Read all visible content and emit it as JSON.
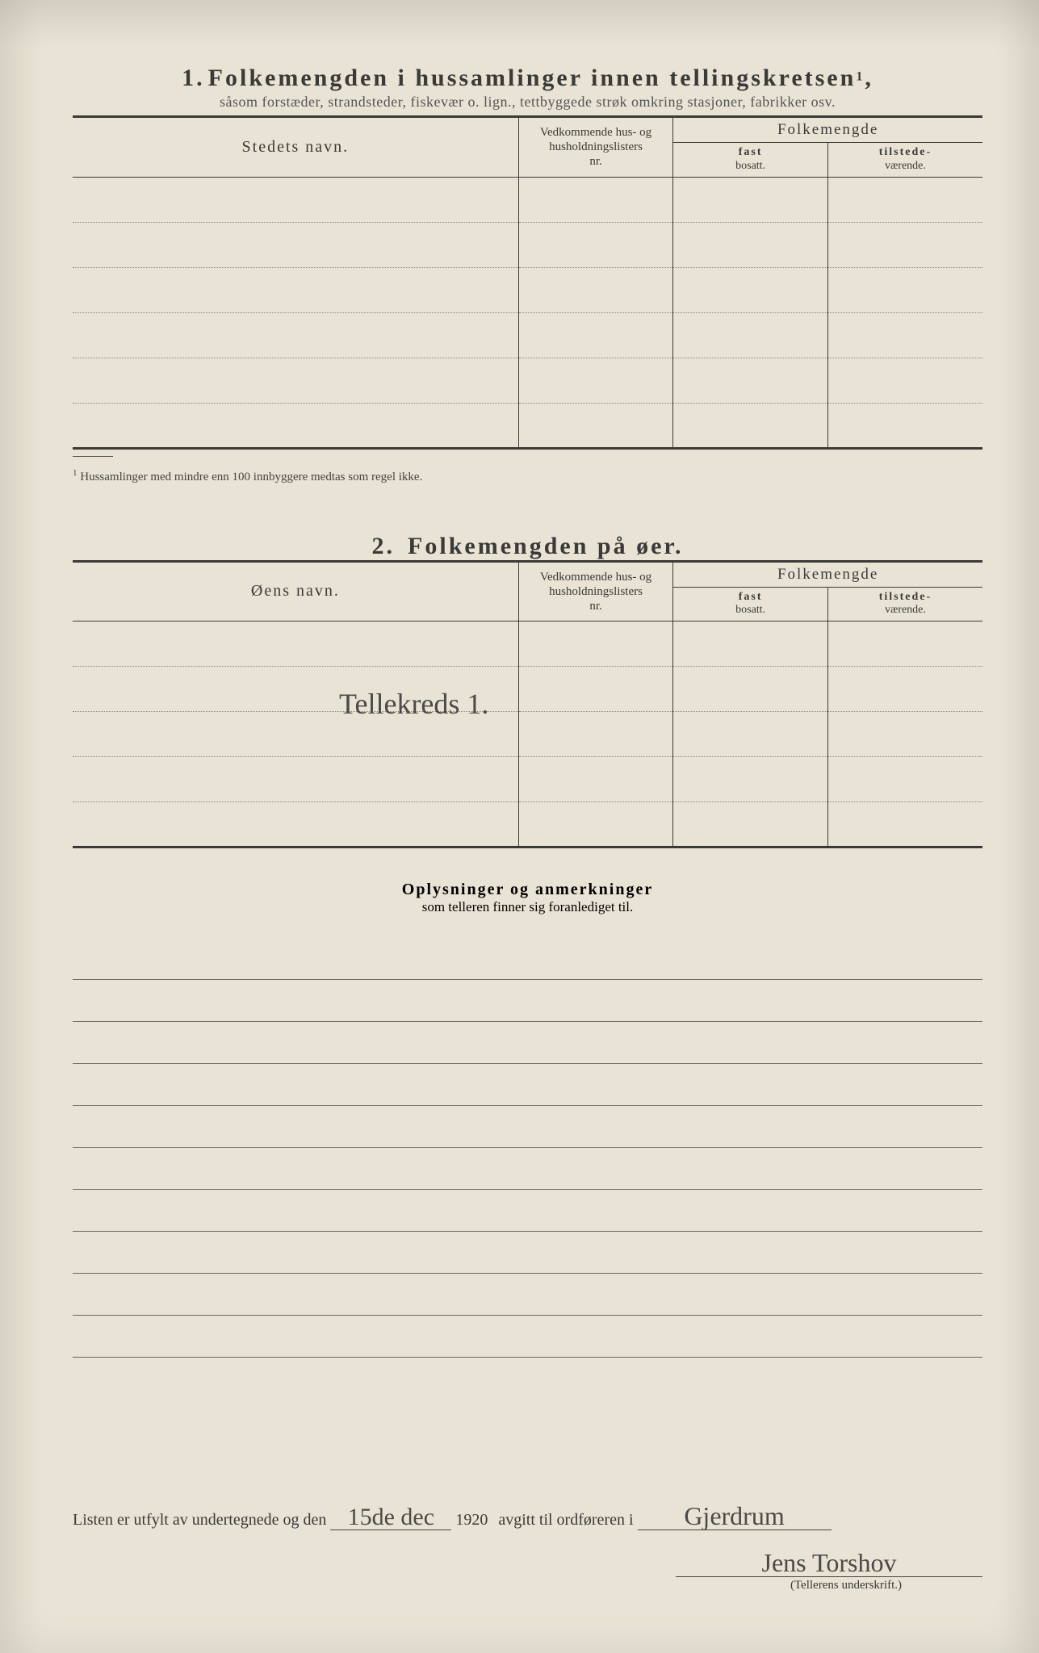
{
  "colors": {
    "paper": "#e8e3d4",
    "ink": "#3a3a38",
    "faint": "#555"
  },
  "section1": {
    "number": "1.",
    "title": "Folkemengden i hussamlinger innen tellingskretsen",
    "title_sup": "1",
    "subtitle": "såsom forstæder, strandsteder, fiskevær o. lign., tettbyggede strøk omkring stasjoner, fabrikker osv.",
    "col_name": "Stedets navn.",
    "col_nr_l1": "Vedkommende hus- og",
    "col_nr_l2": "husholdningslisters",
    "col_nr_l3": "nr.",
    "col_folk": "Folkemengde",
    "col_f1_top": "fast",
    "col_f1_bot": "bosatt.",
    "col_f2_top": "tilstede-",
    "col_f2_bot": "værende.",
    "footnote_sup": "1",
    "footnote": "Hussamlinger med mindre enn 100 innbyggere medtas som regel ikke.",
    "row_count": 6
  },
  "section2": {
    "number": "2.",
    "title": "Folkemengden på øer.",
    "col_name": "Øens navn.",
    "row_count": 5,
    "handwritten": "Tellekreds 1."
  },
  "remarks": {
    "title": "Oplysninger og anmerkninger",
    "subtitle": "som telleren finner sig foranlediget til.",
    "line_count": 10
  },
  "footer": {
    "prefix": "Listen er utfylt av undertegnede og den",
    "date_handwritten": "15de dec",
    "year": "1920",
    "mid": "avgitt til ordføreren i",
    "place_handwritten": "Gjerdrum",
    "signature_handwritten": "Jens Torshov",
    "sig_caption": "(Tellerens underskrift.)"
  }
}
